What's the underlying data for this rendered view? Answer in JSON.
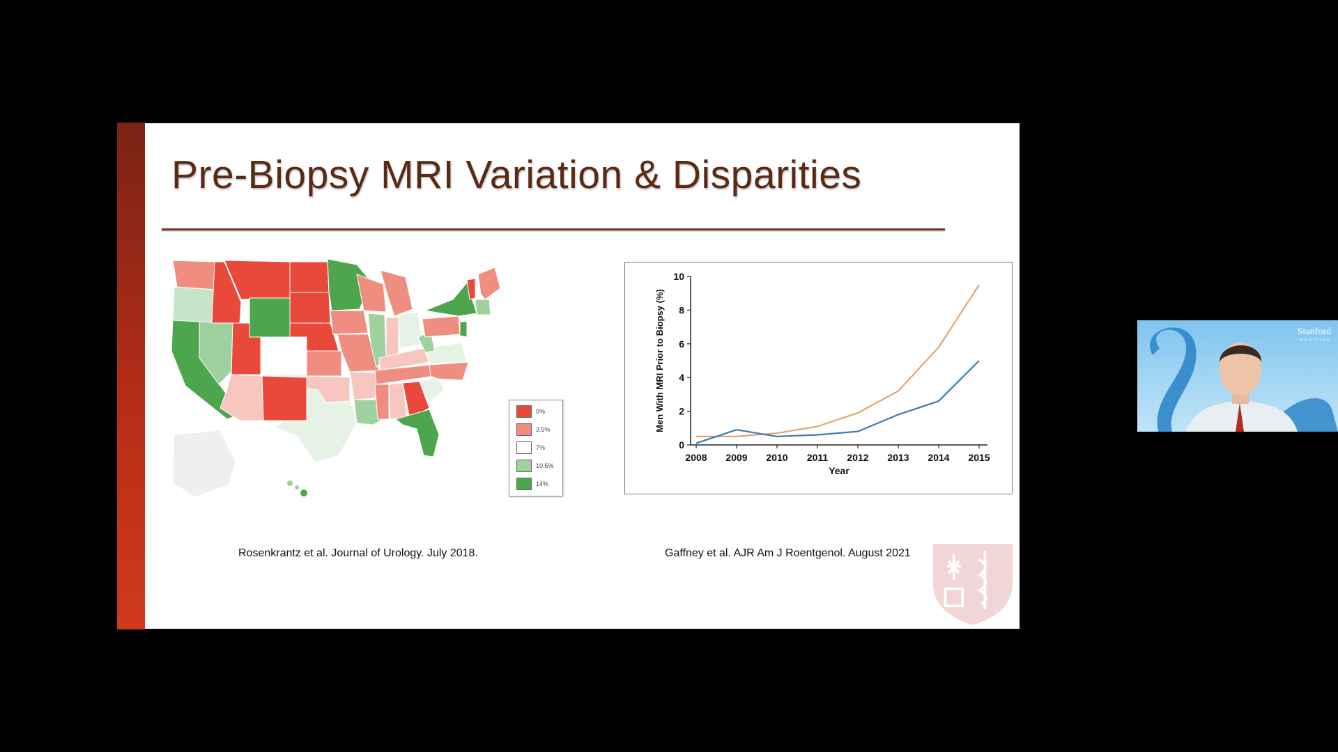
{
  "slide": {
    "title": "Pre-Biopsy MRI Variation & Disparities",
    "citation_left": "Rosenkrantz et al. Journal of Urology. July 2018.",
    "citation_right": "Gaffney et al. AJR Am J Roentgenol. August 2021"
  },
  "map_legend": {
    "items": [
      {
        "label": "0%",
        "color": "#e8493a"
      },
      {
        "label": "3.5%",
        "color": "#ef8e80"
      },
      {
        "label": "7%",
        "color": "#ffffff"
      },
      {
        "label": "10.5%",
        "color": "#9fd19f"
      },
      {
        "label": "14%",
        "color": "#4da64d"
      }
    ]
  },
  "chart_data": {
    "type": "line",
    "x": [
      2008,
      2009,
      2010,
      2011,
      2012,
      2013,
      2014,
      2015
    ],
    "series": [
      {
        "color": "#e7a36a",
        "values": [
          0.5,
          0.5,
          0.7,
          1.1,
          1.9,
          3.2,
          5.8,
          9.5
        ]
      },
      {
        "color": "#3a7bb8",
        "values": [
          0.1,
          0.9,
          0.5,
          0.6,
          0.8,
          1.8,
          2.6,
          5.0
        ]
      }
    ],
    "xlabel": "Year",
    "ylabel": "Men With MRI Prior to Biopsy (%)",
    "ylim": [
      0,
      10
    ],
    "yticks": [
      0,
      2,
      4,
      6,
      8,
      10
    ],
    "xticks": [
      "2008",
      "2009",
      "2010",
      "2011",
      "2012",
      "2013",
      "2014",
      "2015"
    ]
  },
  "webcam": {
    "logo_line1": "Stanford",
    "logo_line2": "MEDICINE"
  }
}
